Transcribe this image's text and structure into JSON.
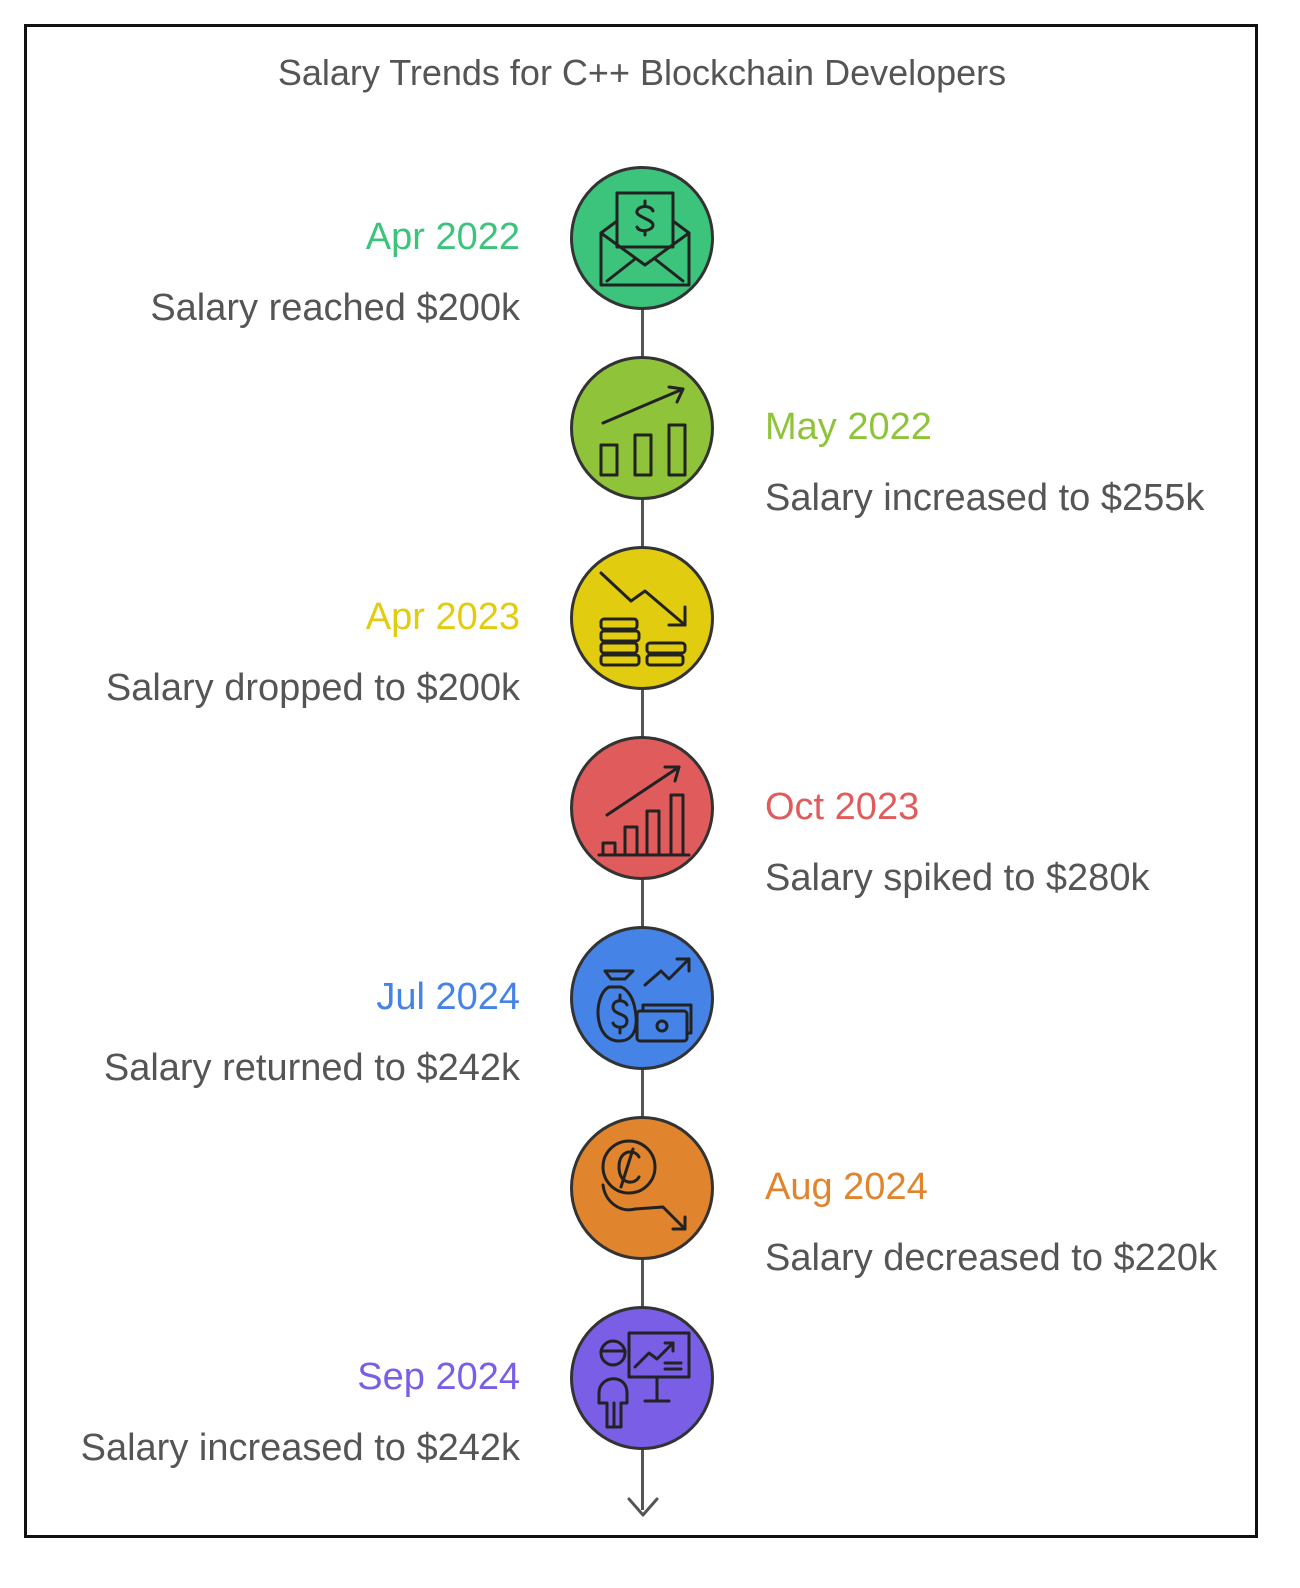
{
  "title": "Salary Trends for C++ Blockchain Developers",
  "events": [
    {
      "date": "Apr 2022",
      "text": "Salary reached $200k",
      "color": "#3cc47c",
      "date_color": "#3cc47c",
      "icon": "salary-envelope-icon"
    },
    {
      "date": "May 2022",
      "text": "Salary increased to $255k",
      "color": "#8fc43a",
      "date_color": "#8fc43a",
      "icon": "rising-bar-chart-icon"
    },
    {
      "date": "Apr 2023",
      "text": "Salary dropped to $200k",
      "color": "#e2cc10",
      "date_color": "#e2cc10",
      "icon": "falling-coins-icon"
    },
    {
      "date": "Oct 2023",
      "text": "Salary spiked to $280k",
      "color": "#e05c5c",
      "date_color": "#e05c5c",
      "icon": "spiking-bar-chart-icon"
    },
    {
      "date": "Jul 2024",
      "text": "Salary returned to $242k",
      "color": "#4683e6",
      "date_color": "#4683e6",
      "icon": "money-bag-growth-icon"
    },
    {
      "date": "Aug 2024",
      "text": "Salary decreased to $220k",
      "color": "#e0842e",
      "date_color": "#e0842e",
      "icon": "coin-decline-icon"
    },
    {
      "date": "Sep 2024",
      "text": "Salary increased to $242k",
      "color": "#7b5ee6",
      "date_color": "#7b5ee6",
      "icon": "presenter-chart-icon"
    }
  ]
}
